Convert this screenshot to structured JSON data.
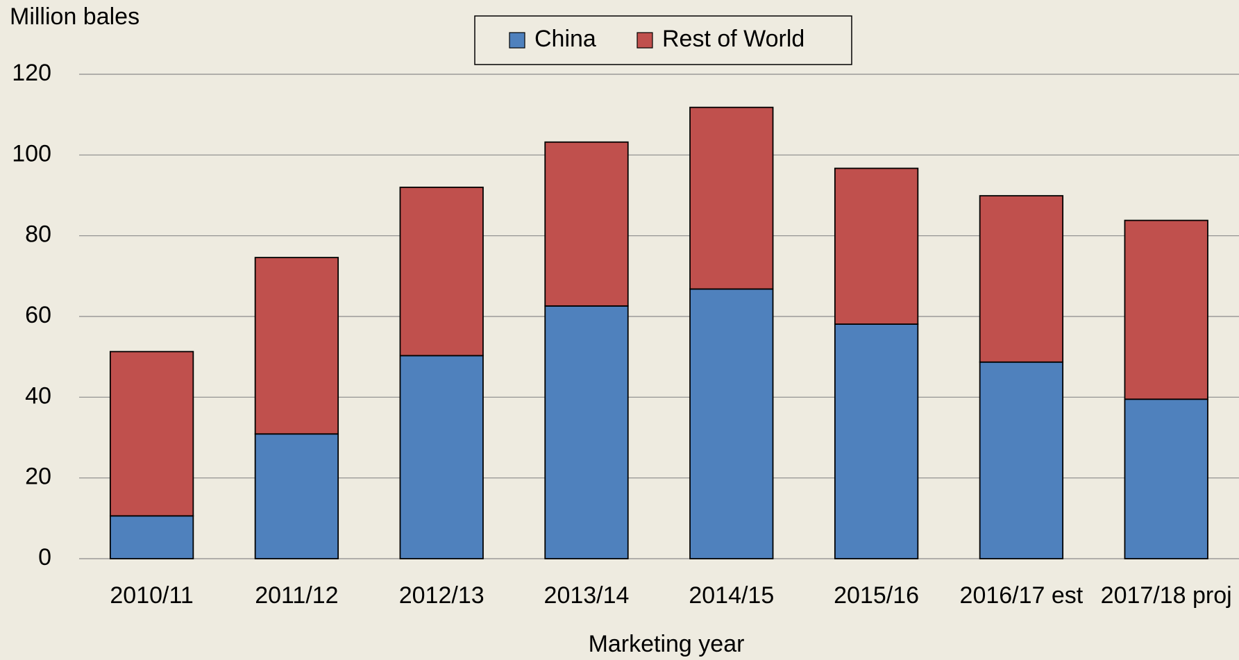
{
  "chart_data": {
    "type": "stacked_bar",
    "y_axis_label": "Million bales",
    "x_axis_label": "Marketing year",
    "categories": [
      "2010/11",
      "2011/12",
      "2012/13",
      "2013/14",
      "2014/15",
      "2015/16",
      "2016/17 est",
      "2017/18 proj"
    ],
    "series": [
      {
        "name": "China",
        "color": "#4f81bd",
        "values": [
          10.6,
          30.9,
          50.3,
          62.6,
          66.8,
          58.1,
          48.7,
          39.5
        ]
      },
      {
        "name": "Rest of World",
        "color": "#c0504d",
        "values": [
          40.7,
          43.7,
          41.7,
          40.6,
          45.0,
          38.6,
          41.2,
          44.3
        ]
      }
    ],
    "ylim": [
      0,
      120
    ],
    "yticks": [
      0,
      20,
      40,
      60,
      80,
      100,
      120
    ],
    "grid": true,
    "legend": "top"
  }
}
